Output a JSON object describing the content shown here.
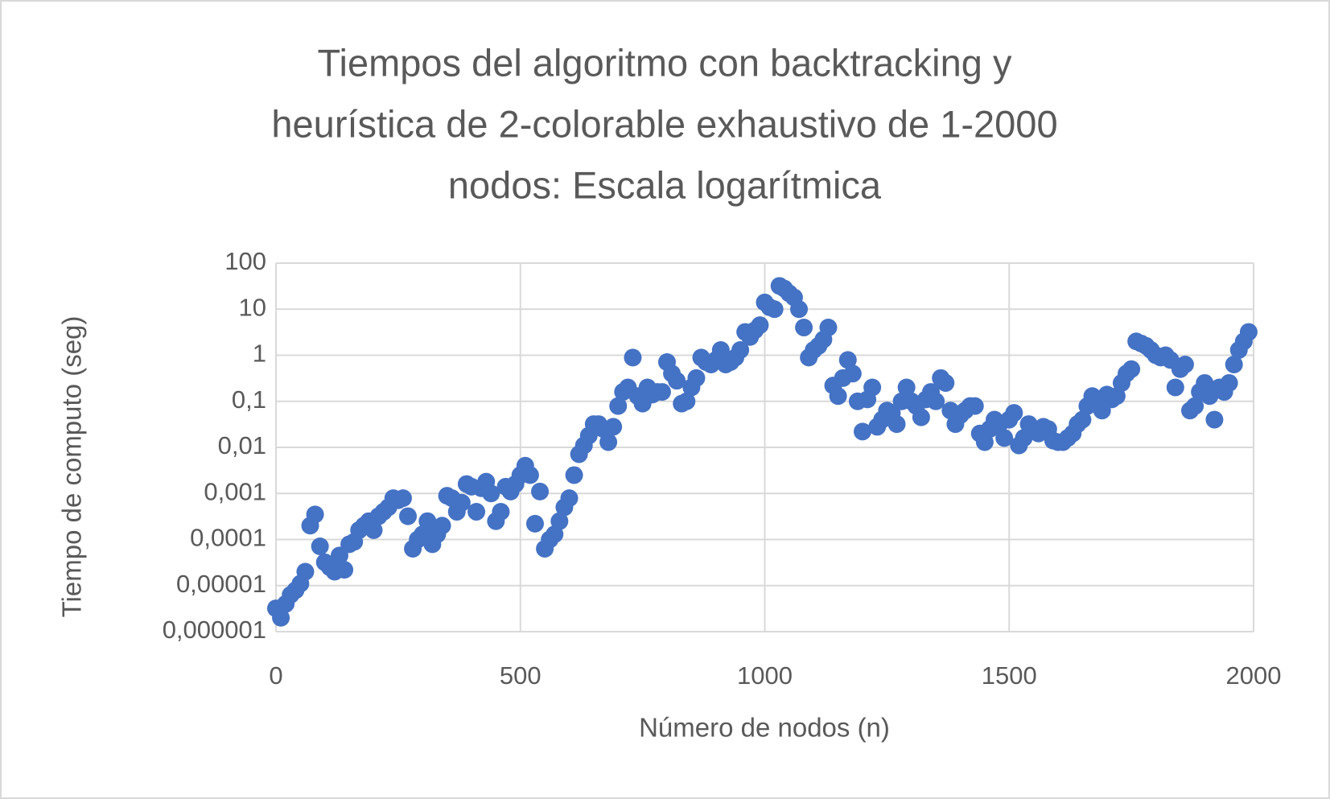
{
  "chart_data": {
    "type": "scatter",
    "title": [
      "Tiempos del algoritmo con backtracking y",
      "heurística de 2-colorable exhaustivo de 1-2000",
      "nodos: Escala logarítmica"
    ],
    "x_label": "Número de nodos (n)",
    "y_label": "Tiempo de computo (seg)",
    "color": "#4472c4",
    "grid": true,
    "yscale": "log",
    "xlim": [
      0,
      2000
    ],
    "xticks": [
      0,
      500,
      1000,
      1500,
      2000
    ],
    "ylim": [
      1e-06,
      100
    ],
    "yticks": [
      {
        "value": 1e-06,
        "label": "0,000001"
      },
      {
        "value": 1e-05,
        "label": "0,00001"
      },
      {
        "value": 0.0001,
        "label": "0,0001"
      },
      {
        "value": 0.001,
        "label": "0,001"
      },
      {
        "value": 0.01,
        "label": "0,01"
      },
      {
        "value": 0.1,
        "label": "0,1"
      },
      1,
      10,
      100
    ],
    "x": [
      0,
      10,
      20,
      30,
      40,
      50,
      60,
      70,
      80,
      90,
      100,
      110,
      120,
      130,
      140,
      150,
      160,
      170,
      180,
      190,
      200,
      210,
      220,
      230,
      240,
      250,
      260,
      270,
      280,
      290,
      300,
      310,
      320,
      330,
      340,
      350,
      360,
      370,
      380,
      390,
      400,
      410,
      420,
      430,
      440,
      450,
      460,
      470,
      480,
      490,
      500,
      510,
      520,
      530,
      540,
      550,
      560,
      570,
      580,
      590,
      600,
      610,
      620,
      630,
      640,
      650,
      660,
      670,
      680,
      690,
      700,
      710,
      720,
      730,
      740,
      750,
      760,
      770,
      780,
      790,
      800,
      810,
      820,
      830,
      840,
      850,
      860,
      870,
      880,
      890,
      900,
      910,
      920,
      930,
      940,
      950,
      960,
      970,
      980,
      990,
      1000,
      1010,
      1020,
      1030,
      1040,
      1050,
      1060,
      1070,
      1080,
      1090,
      1100,
      1110,
      1120,
      1130,
      1140,
      1150,
      1160,
      1170,
      1180,
      1190,
      1200,
      1210,
      1220,
      1230,
      1240,
      1250,
      1260,
      1270,
      1280,
      1290,
      1300,
      1310,
      1320,
      1330,
      1340,
      1350,
      1360,
      1370,
      1380,
      1390,
      1400,
      1410,
      1420,
      1430,
      1440,
      1450,
      1460,
      1470,
      1480,
      1490,
      1500,
      1510,
      1520,
      1530,
      1540,
      1550,
      1560,
      1570,
      1580,
      1590,
      1600,
      1610,
      1620,
      1630,
      1640,
      1650,
      1660,
      1670,
      1680,
      1690,
      1700,
      1710,
      1720,
      1730,
      1740,
      1750,
      1760,
      1770,
      1780,
      1790,
      1800,
      1810,
      1820,
      1830,
      1840,
      1850,
      1860,
      1870,
      1880,
      1890,
      1900,
      1910,
      1920,
      1930,
      1940,
      1950,
      1960,
      1970,
      1980,
      1990
    ],
    "values": [
      3.2e-06,
      2e-06,
      4e-06,
      6.3e-06,
      7.9e-06,
      1.1e-05,
      2e-05,
      0.0002,
      0.00035,
      7.1e-05,
      3.2e-05,
      2.5e-05,
      2e-05,
      4.5e-05,
      2.2e-05,
      7.9e-05,
      8.9e-05,
      0.00016,
      0.0002,
      0.00025,
      0.00016,
      0.00032,
      0.0004,
      0.0005,
      0.00079,
      0.00071,
      0.00079,
      0.00032,
      6.3e-05,
      0.0001,
      0.00013,
      0.00025,
      7.9e-05,
      0.00013,
      0.0002,
      0.00089,
      0.00079,
      0.0004,
      0.00063,
      0.0016,
      0.0014,
      0.0004,
      0.0013,
      0.0018,
      0.001,
      0.00025,
      0.0004,
      0.0014,
      0.0011,
      0.0016,
      0.0025,
      0.004,
      0.0025,
      0.00022,
      0.0011,
      6.3e-05,
      0.0001,
      0.00013,
      0.00025,
      0.0005,
      0.00079,
      0.0025,
      0.0071,
      0.011,
      0.018,
      0.032,
      0.032,
      0.025,
      0.013,
      0.028,
      0.079,
      0.16,
      0.2,
      0.89,
      0.13,
      0.089,
      0.2,
      0.14,
      0.16,
      0.16,
      0.71,
      0.4,
      0.28,
      0.089,
      0.1,
      0.2,
      0.32,
      0.89,
      0.71,
      0.63,
      0.79,
      1.3,
      0.63,
      0.71,
      0.89,
      1.3,
      3.2,
      2.5,
      3.5,
      4.5,
      14,
      11,
      10,
      32,
      28,
      22,
      18,
      10,
      4.0,
      0.89,
      1.3,
      1.6,
      2.2,
      4.0,
      0.22,
      0.13,
      0.32,
      0.79,
      0.4,
      0.1,
      0.022,
      0.11,
      0.2,
      0.028,
      0.04,
      0.063,
      0.056,
      0.032,
      0.1,
      0.2,
      0.1,
      0.079,
      0.045,
      0.11,
      0.16,
      0.1,
      0.32,
      0.25,
      0.063,
      0.032,
      0.05,
      0.063,
      0.079,
      0.079,
      0.02,
      0.013,
      0.025,
      0.04,
      0.032,
      0.016,
      0.04,
      0.056,
      0.011,
      0.016,
      0.032,
      0.025,
      0.02,
      0.028,
      0.025,
      0.014,
      0.013,
      0.013,
      0.016,
      0.02,
      0.032,
      0.04,
      0.079,
      0.13,
      0.1,
      0.063,
      0.14,
      0.11,
      0.13,
      0.25,
      0.4,
      0.5,
      2.0,
      1.8,
      1.6,
      1.3,
      1.0,
      0.89,
      1.0,
      0.79,
      0.2,
      0.5,
      0.63,
      0.063,
      0.079,
      0.16,
      0.25,
      0.13,
      0.04,
      0.2,
      0.16,
      0.25,
      0.63,
      1.3,
      2.0,
      3.2
    ]
  }
}
